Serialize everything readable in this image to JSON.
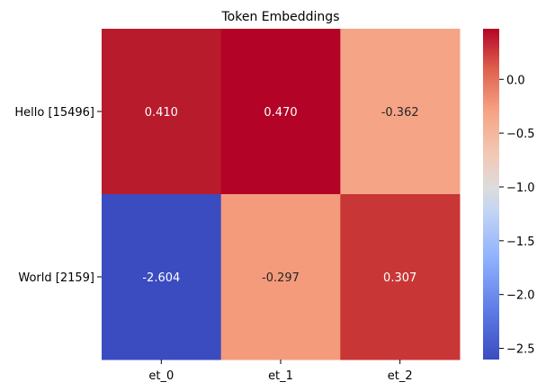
{
  "chart_data": {
    "type": "heatmap",
    "title": "Token Embeddings",
    "rows": [
      "Hello [15496]",
      "World [2159]"
    ],
    "columns": [
      "et_0",
      "et_1",
      "et_2"
    ],
    "values": [
      [
        0.41,
        0.47,
        -0.362
      ],
      [
        -2.604,
        -0.297,
        0.307
      ]
    ],
    "value_labels": [
      [
        "0.410",
        "0.470",
        "-0.362"
      ],
      [
        "-2.604",
        "-0.297",
        "0.307"
      ]
    ],
    "colormap": "coolwarm",
    "colorbar": {
      "range": [
        -2.604,
        0.47
      ],
      "ticks": [
        0.0,
        -0.5,
        -1.0,
        -1.5,
        -2.0,
        -2.5
      ],
      "tick_labels": [
        "0.0",
        "−0.5",
        "−1.0",
        "−1.5",
        "−2.0",
        "−2.5"
      ]
    },
    "xlabel": "",
    "ylabel": "",
    "grid": false
  },
  "colors": {
    "cell_0_0": "#b81b2c",
    "cell_0_1": "#b30326",
    "cell_0_2": "#f5a485",
    "cell_1_0": "#3b4cc0",
    "cell_1_1": "#f49b7c",
    "cell_1_2": "#c93636",
    "text_light": "#ffffff",
    "text_dark": "#262626"
  }
}
